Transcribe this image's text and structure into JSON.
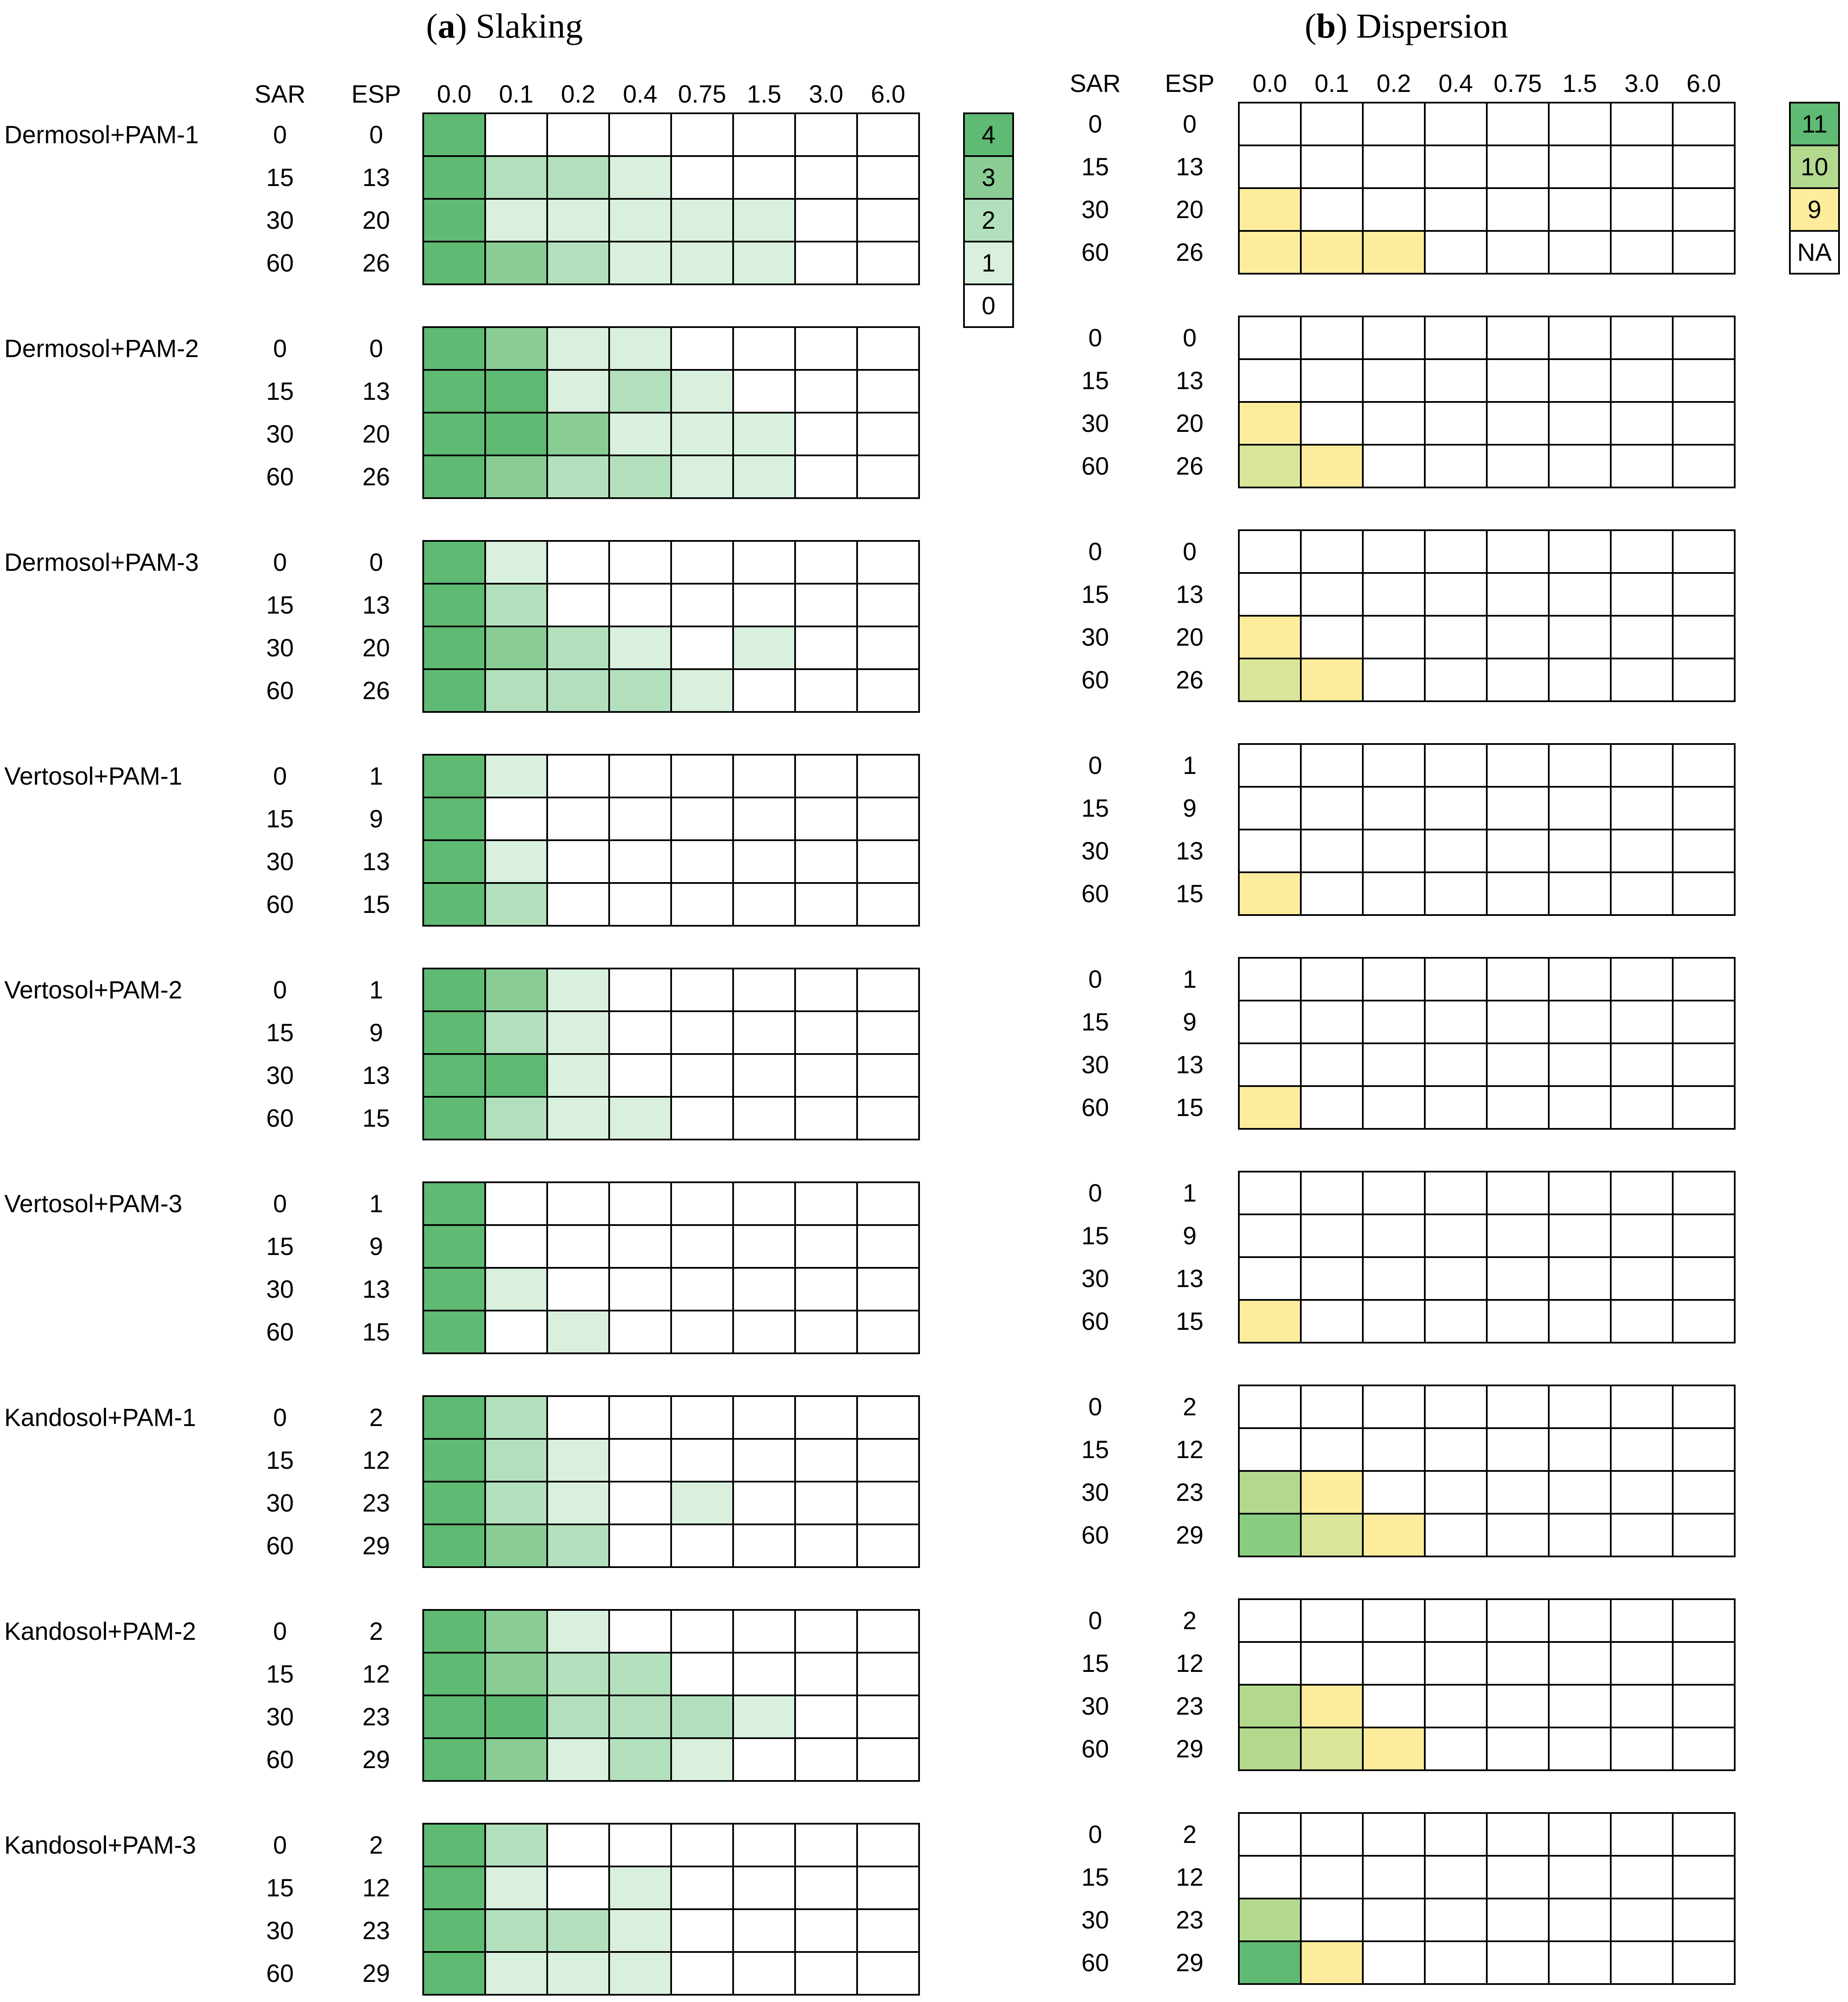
{
  "chart_data": [
    {
      "type": "heatmap",
      "title_letter": "a",
      "title_text": "Slaking",
      "row_header": "SAR",
      "esp_header": "ESP",
      "columns": [
        "0.0",
        "0.1",
        "0.2",
        "0.4",
        "0.75",
        "1.5",
        "3.0",
        "6.0"
      ],
      "legend": {
        "entries": [
          {
            "label": "4",
            "color": "#5fba73"
          },
          {
            "label": "3",
            "color": "#89cd94"
          },
          {
            "label": "2",
            "color": "#b3e0bc"
          },
          {
            "label": "1",
            "color": "#d8f0dd"
          },
          {
            "label": "0",
            "color": "#ffffff"
          }
        ]
      },
      "panels": [
        {
          "name": "Dermosol+PAM-1",
          "sar": [
            "0",
            "15",
            "30",
            "60"
          ],
          "esp": [
            "0",
            "13",
            "20",
            "26"
          ],
          "values": [
            [
              4,
              0,
              0,
              0,
              0,
              0,
              0,
              0
            ],
            [
              4,
              2,
              2,
              1,
              0,
              0,
              0,
              0
            ],
            [
              4,
              1,
              1,
              1,
              1,
              1,
              0,
              0
            ],
            [
              4,
              3,
              2,
              1,
              1,
              1,
              0,
              0
            ]
          ]
        },
        {
          "name": "Dermosol+PAM-2",
          "sar": [
            "0",
            "15",
            "30",
            "60"
          ],
          "esp": [
            "0",
            "13",
            "20",
            "26"
          ],
          "values": [
            [
              4,
              3,
              1,
              1,
              0,
              0,
              0,
              0
            ],
            [
              4,
              4,
              1,
              2,
              1,
              0,
              0,
              0
            ],
            [
              4,
              4,
              3,
              1,
              1,
              1,
              0,
              0
            ],
            [
              4,
              3,
              2,
              2,
              1,
              1,
              0,
              0
            ]
          ]
        },
        {
          "name": "Dermosol+PAM-3",
          "sar": [
            "0",
            "15",
            "30",
            "60"
          ],
          "esp": [
            "0",
            "13",
            "20",
            "26"
          ],
          "values": [
            [
              4,
              1,
              0,
              0,
              0,
              0,
              0,
              0
            ],
            [
              4,
              2,
              0,
              0,
              0,
              0,
              0,
              0
            ],
            [
              4,
              3,
              2,
              1,
              0,
              1,
              0,
              0
            ],
            [
              4,
              2,
              2,
              2,
              1,
              0,
              0,
              0
            ]
          ]
        },
        {
          "name": "Vertosol+PAM-1",
          "sar": [
            "0",
            "15",
            "30",
            "60"
          ],
          "esp": [
            "1",
            "9",
            "13",
            "15"
          ],
          "values": [
            [
              4,
              1,
              0,
              0,
              0,
              0,
              0,
              0
            ],
            [
              4,
              0,
              0,
              0,
              0,
              0,
              0,
              0
            ],
            [
              4,
              1,
              0,
              0,
              0,
              0,
              0,
              0
            ],
            [
              4,
              2,
              0,
              0,
              0,
              0,
              0,
              0
            ]
          ]
        },
        {
          "name": "Vertosol+PAM-2",
          "sar": [
            "0",
            "15",
            "30",
            "60"
          ],
          "esp": [
            "1",
            "9",
            "13",
            "15"
          ],
          "values": [
            [
              4,
              3,
              1,
              0,
              0,
              0,
              0,
              0
            ],
            [
              4,
              2,
              1,
              0,
              0,
              0,
              0,
              0
            ],
            [
              4,
              4,
              1,
              0,
              0,
              0,
              0,
              0
            ],
            [
              4,
              2,
              1,
              1,
              0,
              0,
              0,
              0
            ]
          ]
        },
        {
          "name": "Vertosol+PAM-3",
          "sar": [
            "0",
            "15",
            "30",
            "60"
          ],
          "esp": [
            "1",
            "9",
            "13",
            "15"
          ],
          "values": [
            [
              4,
              0,
              0,
              0,
              0,
              0,
              0,
              0
            ],
            [
              4,
              0,
              0,
              0,
              0,
              0,
              0,
              0
            ],
            [
              4,
              1,
              0,
              0,
              0,
              0,
              0,
              0
            ],
            [
              4,
              0,
              1,
              0,
              0,
              0,
              0,
              0
            ]
          ]
        },
        {
          "name": "Kandosol+PAM-1",
          "sar": [
            "0",
            "15",
            "30",
            "60"
          ],
          "esp": [
            "2",
            "12",
            "23",
            "29"
          ],
          "values": [
            [
              4,
              2,
              0,
              0,
              0,
              0,
              0,
              0
            ],
            [
              4,
              2,
              1,
              0,
              0,
              0,
              0,
              0
            ],
            [
              4,
              2,
              1,
              0,
              1,
              0,
              0,
              0
            ],
            [
              4,
              3,
              2,
              0,
              0,
              0,
              0,
              0
            ]
          ]
        },
        {
          "name": "Kandosol+PAM-2",
          "sar": [
            "0",
            "15",
            "30",
            "60"
          ],
          "esp": [
            "2",
            "12",
            "23",
            "29"
          ],
          "values": [
            [
              4,
              3,
              1,
              0,
              0,
              0,
              0,
              0
            ],
            [
              4,
              3,
              2,
              2,
              0,
              0,
              0,
              0
            ],
            [
              4,
              4,
              2,
              2,
              2,
              1,
              0,
              0
            ],
            [
              4,
              3,
              1,
              2,
              1,
              0,
              0,
              0
            ]
          ]
        },
        {
          "name": "Kandosol+PAM-3",
          "sar": [
            "0",
            "15",
            "30",
            "60"
          ],
          "esp": [
            "2",
            "12",
            "23",
            "29"
          ],
          "values": [
            [
              4,
              2,
              0,
              0,
              0,
              0,
              0,
              0
            ],
            [
              4,
              1,
              0,
              1,
              0,
              0,
              0,
              0
            ],
            [
              4,
              2,
              2,
              1,
              0,
              0,
              0,
              0
            ],
            [
              4,
              1,
              1,
              1,
              0,
              0,
              0,
              0
            ]
          ]
        }
      ]
    },
    {
      "type": "heatmap",
      "title_letter": "b",
      "title_text": "Dispersion",
      "row_header": "SAR",
      "esp_header": "ESP",
      "columns": [
        "0.0",
        "0.1",
        "0.2",
        "0.4",
        "0.75",
        "1.5",
        "3.0",
        "6.0"
      ],
      "legend": {
        "entries": [
          {
            "label": "11",
            "color": "#5fba73"
          },
          {
            "label": "10",
            "color": "#b3d98e"
          },
          {
            "label": "9",
            "color": "#fdec9c"
          },
          {
            "label": "NA",
            "color": "#ffffff"
          }
        ]
      },
      "panels": [
        {
          "sar": [
            "0",
            "15",
            "30",
            "60"
          ],
          "esp": [
            "0",
            "13",
            "20",
            "26"
          ],
          "values": [
            [
              "NA",
              "NA",
              "NA",
              "NA",
              "NA",
              "NA",
              "NA",
              "NA"
            ],
            [
              "NA",
              "NA",
              "NA",
              "NA",
              "NA",
              "NA",
              "NA",
              "NA"
            ],
            [
              "9",
              "NA",
              "NA",
              "NA",
              "NA",
              "NA",
              "NA",
              "NA"
            ],
            [
              "9",
              "9",
              "9",
              "NA",
              "NA",
              "NA",
              "NA",
              "NA"
            ]
          ]
        },
        {
          "sar": [
            "0",
            "15",
            "30",
            "60"
          ],
          "esp": [
            "0",
            "13",
            "20",
            "26"
          ],
          "values": [
            [
              "NA",
              "NA",
              "NA",
              "NA",
              "NA",
              "NA",
              "NA",
              "NA"
            ],
            [
              "NA",
              "NA",
              "NA",
              "NA",
              "NA",
              "NA",
              "NA",
              "NA"
            ],
            [
              "9",
              "NA",
              "NA",
              "NA",
              "NA",
              "NA",
              "NA",
              "NA"
            ],
            [
              "9.5",
              "9",
              "NA",
              "NA",
              "NA",
              "NA",
              "NA",
              "NA"
            ]
          ]
        },
        {
          "sar": [
            "0",
            "15",
            "30",
            "60"
          ],
          "esp": [
            "0",
            "13",
            "20",
            "26"
          ],
          "values": [
            [
              "NA",
              "NA",
              "NA",
              "NA",
              "NA",
              "NA",
              "NA",
              "NA"
            ],
            [
              "NA",
              "NA",
              "NA",
              "NA",
              "NA",
              "NA",
              "NA",
              "NA"
            ],
            [
              "9",
              "NA",
              "NA",
              "NA",
              "NA",
              "NA",
              "NA",
              "NA"
            ],
            [
              "9.5",
              "9",
              "NA",
              "NA",
              "NA",
              "NA",
              "NA",
              "NA"
            ]
          ]
        },
        {
          "sar": [
            "0",
            "15",
            "30",
            "60"
          ],
          "esp": [
            "1",
            "9",
            "13",
            "15"
          ],
          "values": [
            [
              "NA",
              "NA",
              "NA",
              "NA",
              "NA",
              "NA",
              "NA",
              "NA"
            ],
            [
              "NA",
              "NA",
              "NA",
              "NA",
              "NA",
              "NA",
              "NA",
              "NA"
            ],
            [
              "NA",
              "NA",
              "NA",
              "NA",
              "NA",
              "NA",
              "NA",
              "NA"
            ],
            [
              "9",
              "NA",
              "NA",
              "NA",
              "NA",
              "NA",
              "NA",
              "NA"
            ]
          ]
        },
        {
          "sar": [
            "0",
            "15",
            "30",
            "60"
          ],
          "esp": [
            "1",
            "9",
            "13",
            "15"
          ],
          "values": [
            [
              "NA",
              "NA",
              "NA",
              "NA",
              "NA",
              "NA",
              "NA",
              "NA"
            ],
            [
              "NA",
              "NA",
              "NA",
              "NA",
              "NA",
              "NA",
              "NA",
              "NA"
            ],
            [
              "NA",
              "NA",
              "NA",
              "NA",
              "NA",
              "NA",
              "NA",
              "NA"
            ],
            [
              "9",
              "NA",
              "NA",
              "NA",
              "NA",
              "NA",
              "NA",
              "NA"
            ]
          ]
        },
        {
          "sar": [
            "0",
            "15",
            "30",
            "60"
          ],
          "esp": [
            "1",
            "9",
            "13",
            "15"
          ],
          "values": [
            [
              "NA",
              "NA",
              "NA",
              "NA",
              "NA",
              "NA",
              "NA",
              "NA"
            ],
            [
              "NA",
              "NA",
              "NA",
              "NA",
              "NA",
              "NA",
              "NA",
              "NA"
            ],
            [
              "NA",
              "NA",
              "NA",
              "NA",
              "NA",
              "NA",
              "NA",
              "NA"
            ],
            [
              "9",
              "NA",
              "NA",
              "NA",
              "NA",
              "NA",
              "NA",
              "NA"
            ]
          ]
        },
        {
          "sar": [
            "0",
            "15",
            "30",
            "60"
          ],
          "esp": [
            "2",
            "12",
            "23",
            "29"
          ],
          "values": [
            [
              "NA",
              "NA",
              "NA",
              "NA",
              "NA",
              "NA",
              "NA",
              "NA"
            ],
            [
              "NA",
              "NA",
              "NA",
              "NA",
              "NA",
              "NA",
              "NA",
              "NA"
            ],
            [
              "10",
              "9",
              "NA",
              "NA",
              "NA",
              "NA",
              "NA",
              "NA"
            ],
            [
              "10.5",
              "9.5",
              "9",
              "NA",
              "NA",
              "NA",
              "NA",
              "NA"
            ]
          ]
        },
        {
          "sar": [
            "0",
            "15",
            "30",
            "60"
          ],
          "esp": [
            "2",
            "12",
            "23",
            "29"
          ],
          "values": [
            [
              "NA",
              "NA",
              "NA",
              "NA",
              "NA",
              "NA",
              "NA",
              "NA"
            ],
            [
              "NA",
              "NA",
              "NA",
              "NA",
              "NA",
              "NA",
              "NA",
              "NA"
            ],
            [
              "10",
              "9",
              "NA",
              "NA",
              "NA",
              "NA",
              "NA",
              "NA"
            ],
            [
              "10",
              "9.5",
              "9",
              "NA",
              "NA",
              "NA",
              "NA",
              "NA"
            ]
          ]
        },
        {
          "sar": [
            "0",
            "15",
            "30",
            "60"
          ],
          "esp": [
            "2",
            "12",
            "23",
            "29"
          ],
          "values": [
            [
              "NA",
              "NA",
              "NA",
              "NA",
              "NA",
              "NA",
              "NA",
              "NA"
            ],
            [
              "NA",
              "NA",
              "NA",
              "NA",
              "NA",
              "NA",
              "NA",
              "NA"
            ],
            [
              "10",
              "NA",
              "NA",
              "NA",
              "NA",
              "NA",
              "NA",
              "NA"
            ],
            [
              "11",
              "9",
              "NA",
              "NA",
              "NA",
              "NA",
              "NA",
              "NA"
            ]
          ]
        }
      ],
      "intermediate_colors": {
        "9.5": "#d9e598",
        "10.5": "#89cd80"
      }
    }
  ]
}
